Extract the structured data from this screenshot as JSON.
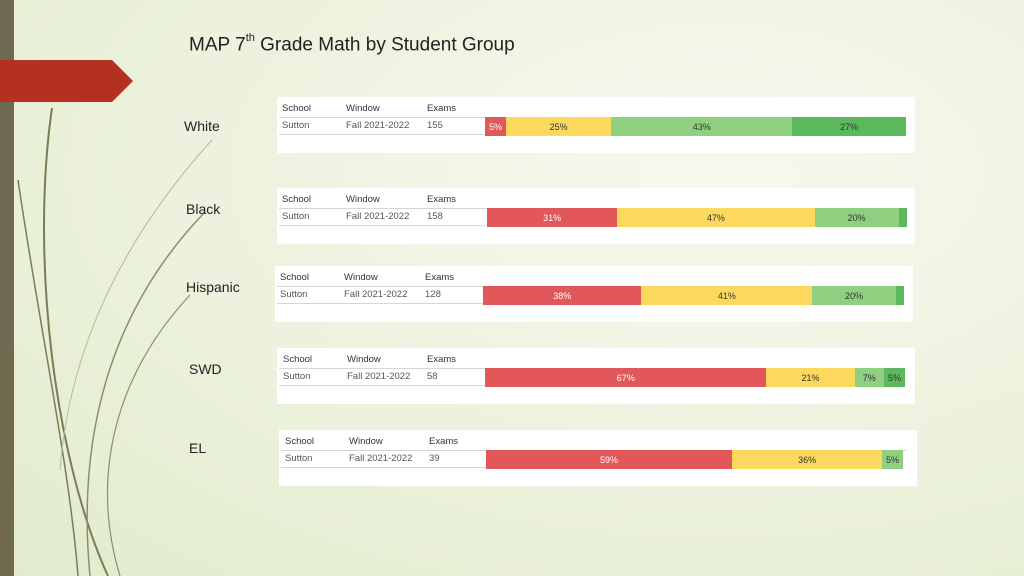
{
  "title": {
    "prefix": "MAP 7",
    "sup": "th",
    "suffix": " Grade Math by Student Group"
  },
  "colors": {
    "level1": "#e1575a",
    "level2": "#fcd95e",
    "level3": "#8fcf80",
    "level4": "#5cb85c"
  },
  "columns": {
    "school": "School",
    "window": "Window",
    "exams": "Exams"
  },
  "chart_data": {
    "type": "bar",
    "stacked": true,
    "orientation": "horizontal",
    "series_colors": [
      "#e1575a",
      "#fcd95e",
      "#8fcf80",
      "#5cb85c"
    ],
    "rows": [
      {
        "group": "White",
        "school": "Sutton",
        "window": "Fall 2021-2022",
        "exams": "155",
        "values": [
          5,
          25,
          43,
          27
        ],
        "labels": [
          "5%",
          "25%",
          "43%",
          "27%"
        ]
      },
      {
        "group": "Black",
        "school": "Sutton",
        "window": "Fall 2021-2022",
        "exams": "158",
        "values": [
          31,
          47,
          20,
          2
        ],
        "labels": [
          "31%",
          "47%",
          "20%",
          ""
        ]
      },
      {
        "group": "Hispanic",
        "school": "Sutton",
        "window": "Fall 2021-2022",
        "exams": "128",
        "values": [
          38,
          41,
          20,
          2
        ],
        "labels": [
          "38%",
          "41%",
          "20%",
          ""
        ]
      },
      {
        "group": "SWD",
        "school": "Sutton",
        "window": "Fall 2021-2022",
        "exams": "58",
        "values": [
          67,
          21,
          7,
          5
        ],
        "labels": [
          "67%",
          "21%",
          "7%",
          "5%"
        ]
      },
      {
        "group": "EL",
        "school": "Sutton",
        "window": "Fall 2021-2022",
        "exams": "39",
        "values": [
          59,
          36,
          5,
          0
        ],
        "labels": [
          "59%",
          "36%",
          "5%",
          ""
        ]
      }
    ]
  }
}
